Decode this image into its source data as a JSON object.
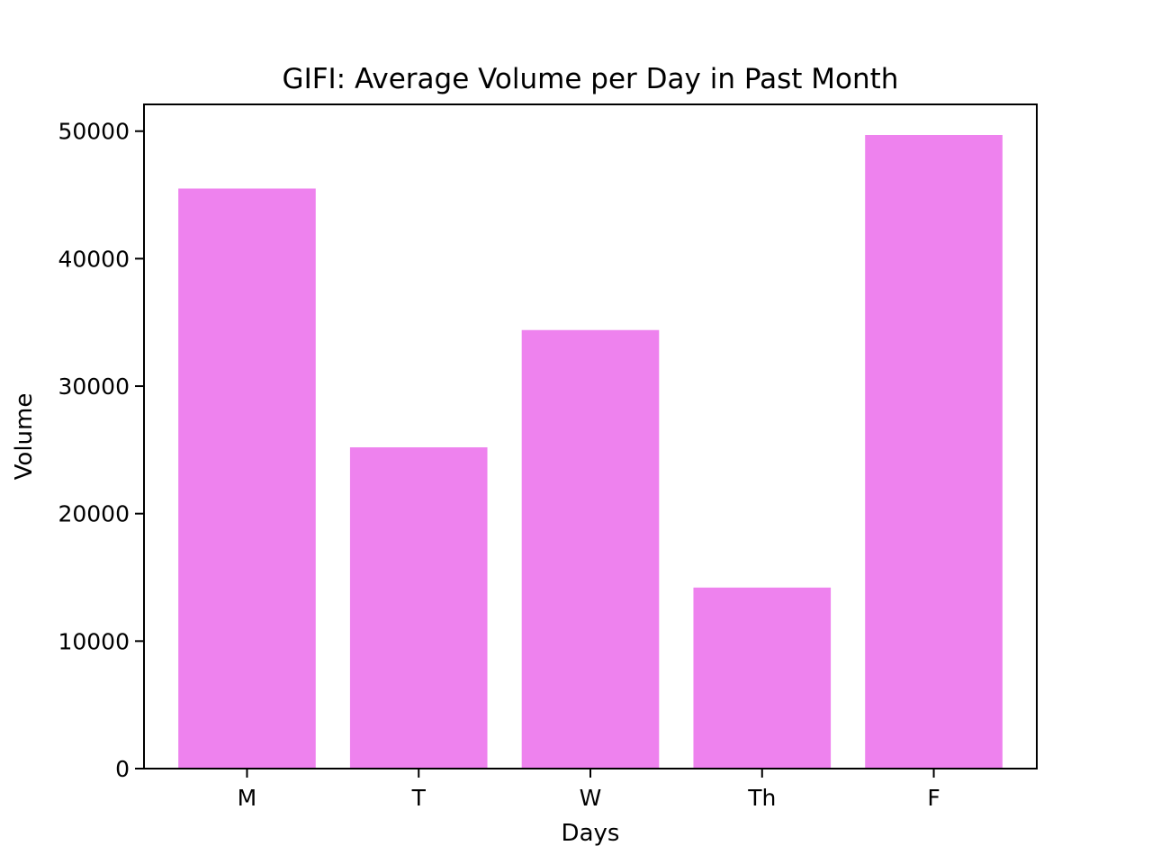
{
  "chart_data": {
    "type": "bar",
    "title": "GIFI: Average Volume per Day in Past Month",
    "xlabel": "Days",
    "ylabel": "Volume",
    "categories": [
      "M",
      "T",
      "W",
      "Th",
      "F"
    ],
    "values": [
      45500,
      25200,
      34400,
      14200,
      49700
    ],
    "ylim": [
      0,
      52100
    ],
    "yticks": [
      0,
      10000,
      20000,
      30000,
      40000,
      50000
    ],
    "bar_color": "#ee82ee",
    "grid": false,
    "legend": "none"
  }
}
